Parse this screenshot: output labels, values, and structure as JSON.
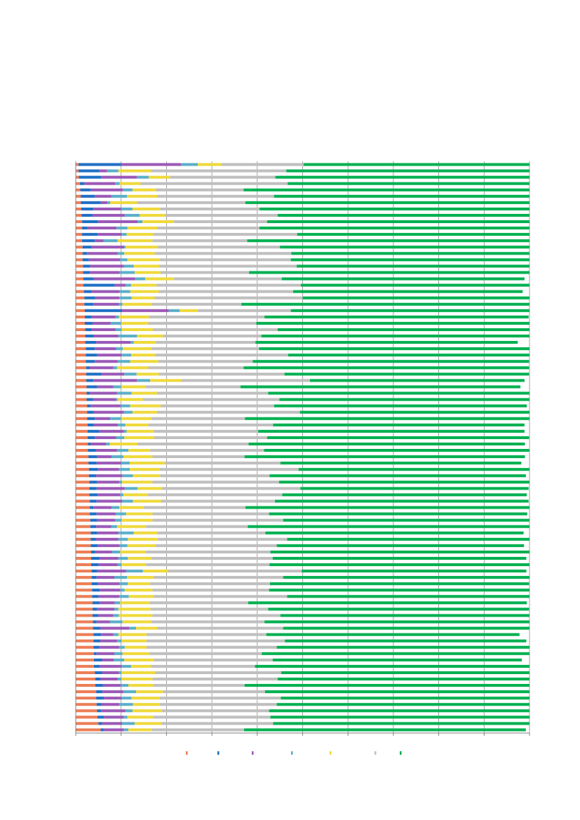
{
  "chart_data": {
    "type": "bar",
    "stacked": true,
    "orientation": "horizontal",
    "title": "",
    "xlabel": "",
    "ylabel": "",
    "xlim": [
      0,
      100
    ],
    "x_ticks": [
      0,
      10,
      20,
      30,
      40,
      50,
      60,
      70,
      80,
      90,
      100
    ],
    "grid": true,
    "legend_position": "bottom",
    "colors": [
      "#ED7D55",
      "#1F6FC5",
      "#9B59B6",
      "#5BAFC8",
      "#EFD93B",
      "#BFBFBF",
      "#00B050"
    ],
    "rows": 90,
    "series": [
      {
        "values": [
          0.6,
          0.6,
          0.7,
          0.9,
          1.0,
          1.1,
          1.1,
          1.2,
          1.3,
          1.4,
          1.4,
          1.4,
          1.4,
          1.5,
          1.5,
          1.5,
          1.6,
          1.6,
          1.7,
          1.7,
          1.8,
          1.9,
          1.9,
          2.0,
          2.0,
          2.0,
          2.1,
          2.1,
          2.1,
          2.2,
          2.2,
          2.2,
          2.3,
          2.3,
          2.3,
          2.4,
          2.4,
          2.4,
          2.5,
          2.5,
          2.5,
          2.6,
          2.6,
          2.6,
          2.7,
          2.7,
          2.8,
          2.8,
          2.9,
          2.9,
          3.0,
          3.0,
          3.0,
          3.1,
          3.1,
          3.1,
          3.2,
          3.2,
          3.3,
          3.3,
          3.3,
          3.4,
          3.4,
          3.4,
          3.5,
          3.5,
          3.5,
          3.6,
          3.6,
          3.7,
          3.7,
          3.7,
          3.8,
          3.8,
          3.9,
          3.9,
          3.9,
          4.0,
          4.0,
          4.0,
          4.2,
          4.3,
          4.3,
          4.5,
          4.5,
          4.6,
          4.7,
          4.8,
          5.0,
          5.5
        ]
      },
      {
        "values": [
          9.4,
          4.5,
          4.9,
          1.0,
          2.3,
          3.1,
          4.4,
          2.7,
          2.4,
          3.5,
          1.2,
          3.4,
          2.8,
          1.9,
          1.0,
          1.4,
          1.6,
          1.5,
          2.3,
          6.9,
          1.6,
          2.4,
          2.0,
          8.2,
          1.5,
          1.7,
          1.3,
          1.9,
          2.4,
          2.0,
          2.5,
          2.0,
          0.8,
          3.4,
          1.6,
          2.3,
          0.7,
          1.4,
          0.8,
          1.5,
          1.7,
          1.4,
          2.5,
          1.6,
          0.6,
          1.7,
          1.9,
          1.8,
          2.0,
          1.6,
          1.7,
          1.6,
          1.9,
          1.5,
          0.8,
          1.5,
          1.5,
          1.3,
          1.4,
          1.1,
          1.6,
          0.9,
          1.9,
          1.6,
          1.2,
          1.1,
          1.4,
          1.7,
          1.4,
          1.6,
          1.0,
          1.3,
          0.8,
          1.6,
          1.7,
          1.5,
          1.2,
          0.6,
          1.8,
          1.3,
          1.6,
          1.1,
          1.7,
          1.4,
          1.7,
          1.1,
          0.9,
          1.4,
          0.8,
          0.6
        ]
      },
      {
        "values": [
          13.2,
          1.8,
          7.9,
          6.8,
          7.1,
          3.6,
          1.5,
          6.1,
          7.1,
          8.7,
          6.4,
          5.3,
          1.9,
          7.3,
          6.7,
          6.9,
          7.4,
          6.6,
          9.1,
          2.4,
          6.3,
          5.3,
          5.6,
          10.3,
          5.3,
          4.0,
          5.4,
          5.4,
          7.6,
          4.7,
          5.4,
          5.0,
          5.2,
          5.0,
          9.6,
          3.6,
          6.0,
          5.1,
          6.6,
          6.6,
          3.4,
          5.3,
          5.5,
          4.7,
          3.4,
          4.7,
          3.2,
          5.4,
          4.6,
          5.8,
          4.9,
          6.2,
          4.9,
          5.6,
          4.0,
          4.2,
          4.0,
          3.3,
          4.7,
          5.0,
          4.8,
          3.7,
          4.1,
          4.2,
          6.4,
          3.9,
          4.8,
          4.5,
          4.6,
          3.3,
          3.8,
          3.3,
          2.9,
          6.4,
          2.7,
          3.7,
          4.5,
          3.9,
          2.6,
          4.8,
          3.7,
          3.8,
          3.9,
          4.6,
          3.9,
          3.9,
          5.3,
          4.4,
          4.4,
          4.5
        ]
      },
      {
        "values": [
          3.7,
          2.5,
          2.6,
          1.0,
          2.1,
          3.5,
          0.6,
          2.5,
          3.3,
          1.1,
          2.4,
          1.1,
          3.1,
          0.3,
          1.5,
          1.6,
          2.2,
          3.3,
          2.2,
          1.2,
          2.3,
          2.7,
          0.8,
          2.4,
          0.7,
          2.3,
          1.3,
          4.1,
          0.7,
          1.5,
          2.1,
          2.8,
          0.8,
          2.7,
          2.9,
          1.7,
          3.2,
          0.3,
          2.1,
          1.9,
          2.4,
          1.6,
          0.6,
          1.8,
          0.8,
          2.5,
          2.6,
          1.9,
          2.4,
          2.3,
          0.6,
          2.8,
          0.7,
          2.4,
          1.7,
          2.3,
          1.4,
          1.3,
          3.4,
          2.1,
          1.7,
          1.8,
          2.1,
          0.9,
          3.7,
          2.8,
          1.8,
          1.0,
          2.1,
          1.2,
          0.9,
          1.2,
          2.8,
          1.5,
          1.1,
          1.0,
          1.2,
          1.8,
          2.3,
          2.1,
          0.6,
          0.9,
          1.7,
          2.8,
          2.2,
          3.0,
          1.6,
          0.8,
          2.8,
          1.0
        ]
      },
      {
        "values": [
          5.2,
          7.2,
          4.7,
          4.6,
          5.2,
          6.7,
          5.9,
          6.1,
          5.6,
          6.9,
          6.6,
          5.9,
          7.7,
          7.1,
          6.7,
          7.1,
          5.6,
          5.7,
          6.3,
          5.6,
          6.3,
          5.1,
          6.4,
          4.0,
          6.6,
          6.0,
          6.9,
          5.7,
          4.8,
          6.3,
          5.3,
          6.2,
          6.9,
          4.9,
          6.8,
          5.4,
          5.6,
          5.6,
          6.7,
          5.4,
          6.7,
          5.1,
          6.0,
          6.6,
          6.1,
          4.8,
          6.4,
          7.7,
          6.6,
          6.0,
          6.7,
          5.4,
          5.4,
          6.2,
          5.4,
          5.8,
          6.8,
          6.4,
          5.2,
          6.6,
          6.2,
          5.6,
          5.2,
          5.4,
          5.6,
          5.9,
          4.9,
          6.1,
          5.5,
          6.5,
          7.1,
          7.4,
          6.4,
          4.7,
          6.2,
          5.5,
          4.8,
          5.9,
          6.5,
          4.4,
          7.4,
          6.8,
          5.5,
          5.9,
          6.2,
          5.9,
          6.5,
          5.7,
          5.9,
          5.2
        ]
      },
      {
        "values": [
          18.1,
          29.8,
          23.2,
          32.4,
          19.3,
          25.7,
          23.9,
          21.9,
          24.8,
          20.6,
          22.5,
          31.7,
          20.9,
          26.9,
          30.1,
          28.9,
          30.3,
          19.5,
          23.8,
          31.8,
          29.6,
          32.6,
          19.8,
          20.5,
          25.5,
          23.8,
          27.5,
          21.7,
          22.0,
          23.7,
          29.3,
          20.8,
          21.0,
          27.7,
          28.4,
          20.9,
          24.5,
          30.1,
          25.0,
          31.5,
          20.6,
          27.5,
          23.0,
          24.9,
          24.5,
          25.1,
          20.3,
          25.5,
          30.6,
          24.1,
          27.9,
          30.5,
          29.6,
          25.1,
          22.4,
          25.7,
          28.8,
          22.4,
          23.8,
          28.5,
          26.7,
          27.5,
          26.7,
          27.2,
          29.4,
          28.5,
          26.4,
          25.7,
          29.4,
          21.7,
          25.9,
          28.2,
          24.9,
          27.7,
          26.4,
          30.5,
          28.7,
          24.8,
          26.2,
          22.9,
          27.8,
          27.6,
          20.1,
          22.5,
          26.7,
          25.8,
          23.6,
          25.8,
          24.6,
          20.3
        ]
      },
      {
        "values": [
          49.8,
          53.6,
          56.0,
          53.3,
          63.0,
          58.3,
          62.6,
          59.5,
          55.5,
          57.8,
          59.5,
          51.2,
          62.3,
          55.1,
          53.0,
          53.6,
          51.3,
          61.8,
          53.5,
          50.4,
          50.6,
          50.7,
          65.8,
          52.6,
          58.2,
          60.3,
          55.5,
          59.3,
          57.8,
          59.6,
          53.5,
          60.9,
          62.9,
          53.9,
          47.3,
          61.7,
          57.7,
          55.1,
          55.7,
          50.6,
          62.8,
          55.4,
          58.7,
          57.7,
          60.9,
          58.6,
          61.8,
          53.1,
          51.2,
          56.5,
          55.4,
          50.3,
          53.9,
          55.9,
          62.7,
          56.9,
          55.0,
          63.1,
          56.9,
          53.7,
          54.5,
          57.2,
          55.9,
          57.4,
          49.5,
          54.9,
          57.1,
          57.6,
          54.1,
          61.4,
          57.5,
          55.0,
          59.2,
          55.7,
          55.8,
          53.2,
          56.8,
          62.6,
          54.9,
          61.1,
          54.7,
          56.0,
          63.5,
          59.3,
          56.1,
          58.4,
          57.6,
          61.2,
          58.6,
          62.1
        ]
      }
    ]
  }
}
